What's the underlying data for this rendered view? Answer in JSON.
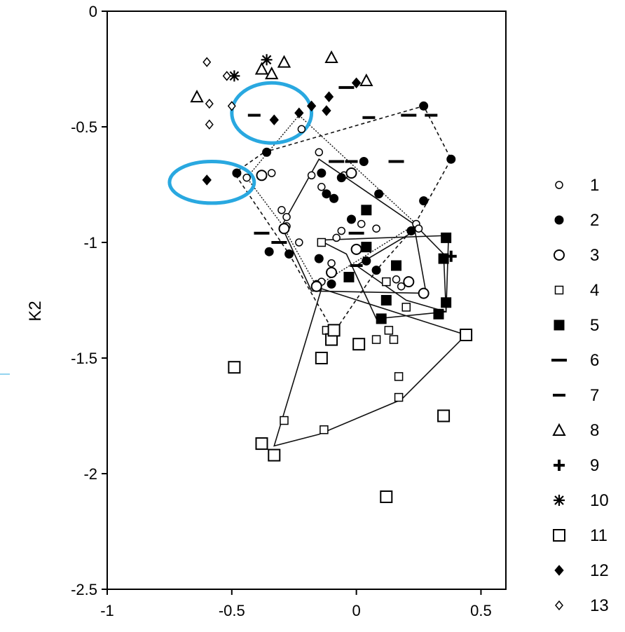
{
  "chart_data": {
    "type": "scatter",
    "title": "",
    "xlabel": "",
    "ylabel": "K2",
    "xlim": [
      -1,
      0.6
    ],
    "ylim": [
      -2.5,
      0
    ],
    "xticks": [
      "-1",
      "-0.5",
      "0",
      "0.5"
    ],
    "yticks": [
      "0",
      "-0.5",
      "-1",
      "-1.5",
      "-2",
      "-2.5"
    ],
    "xtick_values": [
      -1,
      -0.5,
      0,
      0.5
    ],
    "ytick_values": [
      0,
      -0.5,
      -1,
      -1.5,
      -2,
      -2.5
    ],
    "legend_position": "right",
    "series": [
      {
        "name": "1",
        "marker": "circle-open-small",
        "points": [
          [
            -0.22,
            -0.51
          ],
          [
            -0.15,
            -0.61
          ],
          [
            -0.18,
            -0.71
          ],
          [
            -0.14,
            -0.76
          ],
          [
            -0.05,
            -0.71
          ],
          [
            -0.06,
            -0.95
          ],
          [
            -0.28,
            -0.89
          ],
          [
            -0.28,
            -0.93
          ],
          [
            -0.3,
            -0.86
          ],
          [
            -0.34,
            -0.7
          ],
          [
            -0.44,
            -0.72
          ],
          [
            -0.08,
            -0.98
          ],
          [
            -0.1,
            -1.09
          ],
          [
            -0.14,
            -1.17
          ],
          [
            -0.16,
            -1.18
          ],
          [
            0.02,
            -0.92
          ],
          [
            0.08,
            -0.94
          ],
          [
            0.16,
            -1.16
          ],
          [
            0.18,
            -1.19
          ],
          [
            0.24,
            -0.92
          ],
          [
            0.25,
            -0.94
          ],
          [
            -0.23,
            -1.0
          ]
        ]
      },
      {
        "name": "2",
        "marker": "circle-filled",
        "points": [
          [
            -0.36,
            -0.61
          ],
          [
            -0.48,
            -0.7
          ],
          [
            -0.14,
            -0.7
          ],
          [
            -0.12,
            -0.79
          ],
          [
            -0.09,
            -0.81
          ],
          [
            -0.06,
            -0.72
          ],
          [
            0.03,
            -0.65
          ],
          [
            0.27,
            -0.41
          ],
          [
            0.38,
            -0.64
          ],
          [
            0.27,
            -0.82
          ],
          [
            0.09,
            -0.79
          ],
          [
            -0.02,
            -0.9
          ],
          [
            -0.1,
            -1.18
          ],
          [
            -0.15,
            -1.07
          ],
          [
            -0.09,
            -1.39
          ],
          [
            0.04,
            -1.08
          ],
          [
            0.08,
            -1.12
          ],
          [
            -0.35,
            -1.04
          ],
          [
            0.22,
            -0.95
          ],
          [
            -0.27,
            -1.05
          ]
        ]
      },
      {
        "name": "3",
        "marker": "circle-open-large",
        "points": [
          [
            -0.38,
            -0.71
          ],
          [
            -0.29,
            -0.94
          ],
          [
            -0.1,
            -1.13
          ],
          [
            0.0,
            -1.03
          ],
          [
            -0.02,
            -0.7
          ],
          [
            0.21,
            -1.17
          ],
          [
            0.27,
            -1.22
          ],
          [
            -0.16,
            -1.19
          ]
        ]
      },
      {
        "name": "4",
        "marker": "square-open-small",
        "points": [
          [
            -0.14,
            -1.0
          ],
          [
            0.12,
            -1.17
          ],
          [
            0.12,
            -1.25
          ],
          [
            0.2,
            -1.28
          ],
          [
            0.15,
            -1.42
          ],
          [
            0.08,
            -1.42
          ],
          [
            0.13,
            -1.38
          ],
          [
            0.17,
            -1.58
          ],
          [
            0.17,
            -1.67
          ],
          [
            -0.13,
            -1.81
          ],
          [
            -0.29,
            -1.77
          ],
          [
            -0.12,
            -1.38
          ]
        ]
      },
      {
        "name": "5",
        "marker": "square-filled",
        "points": [
          [
            0.04,
            -0.86
          ],
          [
            0.04,
            -1.02
          ],
          [
            0.16,
            -1.1
          ],
          [
            -0.03,
            -1.15
          ],
          [
            0.1,
            -1.33
          ],
          [
            0.12,
            -1.25
          ],
          [
            0.33,
            -1.31
          ],
          [
            0.36,
            -1.26
          ],
          [
            0.36,
            -0.98
          ],
          [
            0.35,
            -1.07
          ]
        ]
      },
      {
        "name": "6",
        "marker": "dash-long",
        "points": [
          [
            -0.38,
            -0.96
          ],
          [
            -0.31,
            -1.0
          ],
          [
            -0.08,
            -0.65
          ],
          [
            0.0,
            -0.96
          ],
          [
            -0.04,
            -0.33
          ],
          [
            0.16,
            -0.65
          ],
          [
            0.21,
            -0.45
          ]
        ]
      },
      {
        "name": "7",
        "marker": "dash-short",
        "points": [
          [
            -0.41,
            -0.45
          ],
          [
            0.05,
            -0.46
          ],
          [
            0.3,
            -0.45
          ],
          [
            -0.02,
            -0.65
          ],
          [
            0.0,
            -1.1
          ]
        ]
      },
      {
        "name": "8",
        "marker": "triangle-open",
        "points": [
          [
            -0.64,
            -0.37
          ],
          [
            -0.38,
            -0.25
          ],
          [
            -0.34,
            -0.27
          ],
          [
            -0.29,
            -0.22
          ],
          [
            -0.1,
            -0.2
          ],
          [
            0.04,
            -0.3
          ]
        ]
      },
      {
        "name": "9",
        "marker": "plus",
        "points": [
          [
            0.38,
            -1.06
          ]
        ]
      },
      {
        "name": "10",
        "marker": "asterisk",
        "points": [
          [
            -0.49,
            -0.28
          ],
          [
            -0.36,
            -0.21
          ]
        ]
      },
      {
        "name": "11",
        "marker": "square-open-large",
        "points": [
          [
            -0.49,
            -1.54
          ],
          [
            -0.38,
            -1.87
          ],
          [
            -0.33,
            -1.92
          ],
          [
            -0.14,
            -1.5
          ],
          [
            -0.1,
            -1.42
          ],
          [
            -0.09,
            -1.38
          ],
          [
            0.01,
            -1.44
          ],
          [
            0.12,
            -2.1
          ],
          [
            0.35,
            -1.75
          ],
          [
            0.44,
            -1.4
          ]
        ]
      },
      {
        "name": "12",
        "marker": "diamond-filled",
        "points": [
          [
            -0.6,
            -0.73
          ],
          [
            -0.33,
            -0.47
          ],
          [
            -0.23,
            -0.44
          ],
          [
            -0.18,
            -0.41
          ],
          [
            -0.12,
            -0.43
          ],
          [
            -0.11,
            -0.37
          ],
          [
            0.0,
            -0.31
          ]
        ]
      },
      {
        "name": "13",
        "marker": "diamond-open",
        "points": [
          [
            -0.6,
            -0.22
          ],
          [
            -0.52,
            -0.28
          ],
          [
            -0.5,
            -0.41
          ],
          [
            -0.59,
            -0.4
          ],
          [
            -0.59,
            -0.49
          ]
        ]
      }
    ],
    "hulls": [
      {
        "style": "solid",
        "points": [
          [
            -0.15,
            -0.64
          ],
          [
            0.23,
            -0.92
          ],
          [
            0.28,
            -1.22
          ],
          [
            -0.18,
            -1.21
          ],
          [
            -0.3,
            -0.93
          ]
        ]
      },
      {
        "style": "solid",
        "points": [
          [
            -0.15,
            -0.99
          ],
          [
            0.37,
            -0.97
          ],
          [
            0.36,
            -1.3
          ],
          [
            0.08,
            -1.33
          ],
          [
            -0.04,
            -1.05
          ]
        ]
      },
      {
        "style": "solid",
        "points": [
          [
            -0.14,
            -1.2
          ],
          [
            0.44,
            -1.4
          ],
          [
            0.18,
            -1.68
          ],
          [
            -0.15,
            -1.83
          ],
          [
            -0.33,
            -1.88
          ]
        ]
      },
      {
        "style": "solid",
        "points": [
          [
            0.0,
            -1.1
          ],
          [
            0.25,
            -0.94
          ],
          [
            0.35,
            -1.05
          ],
          [
            0.36,
            -1.3
          ],
          [
            0.2,
            -1.25
          ]
        ]
      },
      {
        "style": "dashed",
        "points": [
          [
            -0.37,
            -0.61
          ],
          [
            0.27,
            -0.41
          ],
          [
            0.38,
            -0.64
          ],
          [
            0.22,
            -0.95
          ],
          [
            0.08,
            -1.12
          ],
          [
            -0.09,
            -1.39
          ],
          [
            -0.27,
            -1.05
          ],
          [
            -0.49,
            -0.7
          ]
        ]
      },
      {
        "style": "dotted",
        "points": [
          [
            -0.23,
            -0.45
          ],
          [
            0.24,
            -0.92
          ],
          [
            -0.16,
            -1.19
          ],
          [
            -0.3,
            -0.92
          ],
          [
            -0.44,
            -0.72
          ]
        ]
      }
    ],
    "annotations": [
      {
        "type": "ellipse-highlight",
        "color": "#29a8e0",
        "center": [
          -0.34,
          -0.44
        ],
        "radius": [
          0.16,
          0.13
        ]
      },
      {
        "type": "ellipse-highlight",
        "color": "#29a8e0",
        "center": [
          -0.58,
          -0.74
        ],
        "radius": [
          0.17,
          0.09
        ]
      }
    ]
  }
}
